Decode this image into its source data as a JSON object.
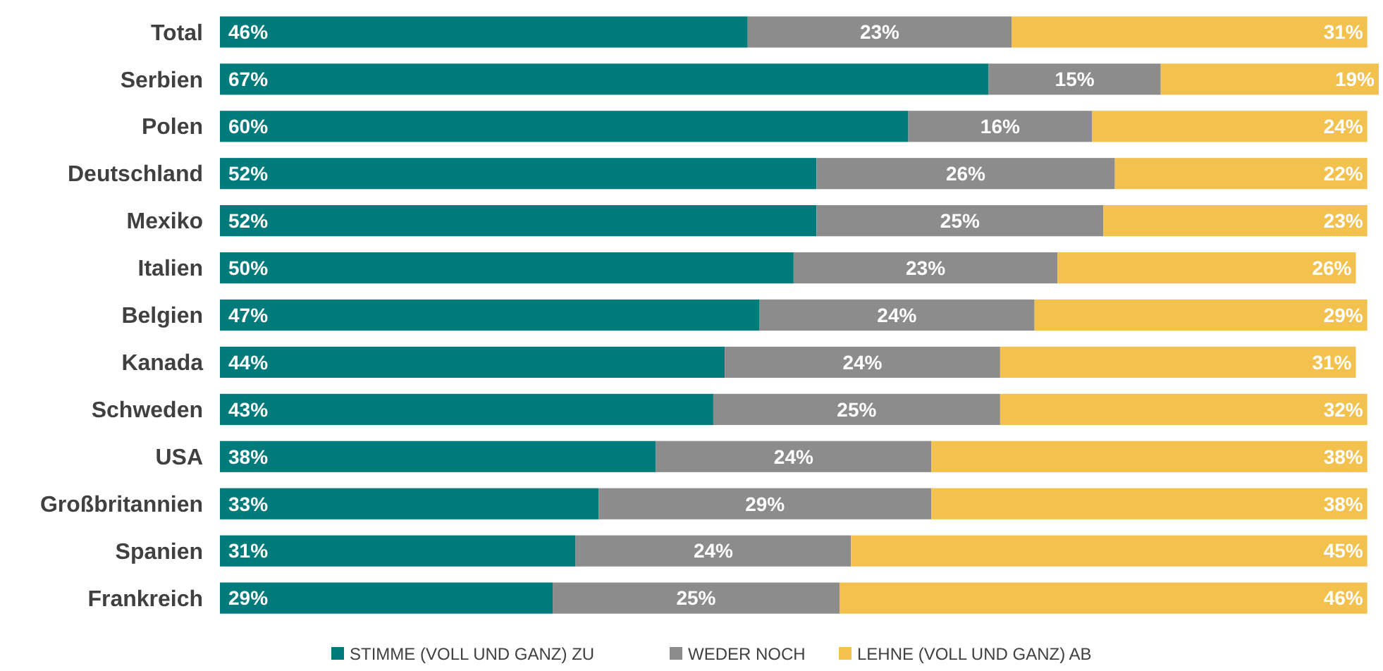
{
  "chart_data": {
    "type": "bar",
    "orientation": "horizontal",
    "stacked": true,
    "legend": "bottom",
    "tick_labels": "y",
    "xlim": [
      0,
      101
    ],
    "categories": [
      "Total",
      "Serbien",
      "Polen",
      "Deutschland",
      "Mexiko",
      "Italien",
      "Belgien",
      "Kanada",
      "Schweden",
      "USA",
      "Großbritannien",
      "Spanien",
      "Frankreich"
    ],
    "series": [
      {
        "name": "STIMME (VOLL UND GANZ) ZU",
        "color": "#007b7b",
        "values": [
          46,
          67,
          60,
          52,
          52,
          50,
          47,
          44,
          43,
          38,
          33,
          31,
          29
        ],
        "value_labels": [
          "46%",
          "67%",
          "60%",
          "52%",
          "52%",
          "50%",
          "47%",
          "44%",
          "43%",
          "38%",
          "33%",
          "31%",
          "29%"
        ]
      },
      {
        "name": "WEDER NOCH",
        "color": "#8c8c8c",
        "values": [
          23,
          15,
          16,
          26,
          25,
          23,
          24,
          24,
          25,
          24,
          29,
          24,
          25
        ],
        "value_labels": [
          "23%",
          "15%",
          "16%",
          "26%",
          "25%",
          "23%",
          "24%",
          "24%",
          "25%",
          "24%",
          "29%",
          "24%",
          "25%"
        ]
      },
      {
        "name": "LEHNE (VOLL UND GANZ) AB",
        "color": "#f2c14e",
        "values": [
          31,
          19,
          24,
          22,
          23,
          26,
          29,
          31,
          32,
          38,
          38,
          45,
          46
        ],
        "value_labels": [
          "31%",
          "19%",
          "24%",
          "22%",
          "23%",
          "26%",
          "29%",
          "31%",
          "32%",
          "38%",
          "38%",
          "45%",
          "46%"
        ]
      }
    ]
  }
}
